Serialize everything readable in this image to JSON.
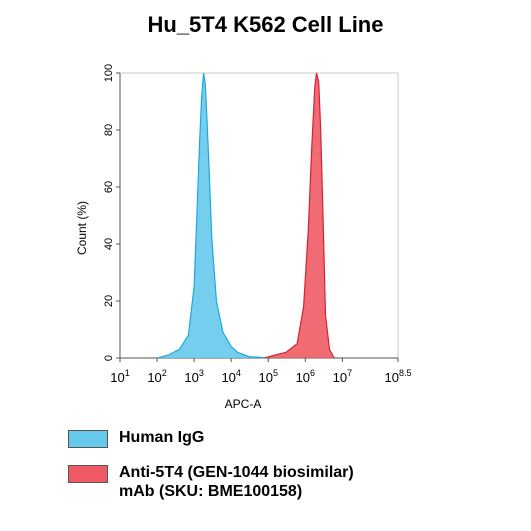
{
  "chart_data": {
    "type": "area",
    "title": "Hu_5T4 K562 Cell Line",
    "xlabel": "APC-A",
    "ylabel": "Count (%)",
    "xscale": "log",
    "xlim": [
      10,
      316228000
    ],
    "ylim": [
      0,
      100
    ],
    "xticks": [
      {
        "base": "10",
        "exp": "1",
        "value": 10
      },
      {
        "base": "10",
        "exp": "2",
        "value": 100
      },
      {
        "base": "10",
        "exp": "3",
        "value": 1000
      },
      {
        "base": "10",
        "exp": "4",
        "value": 10000
      },
      {
        "base": "10",
        "exp": "5",
        "value": 100000
      },
      {
        "base": "10",
        "exp": "6",
        "value": 1000000
      },
      {
        "base": "10",
        "exp": "7",
        "value": 10000000
      },
      {
        "base": "10",
        "exp": "8.5",
        "value": 316228000
      }
    ],
    "yticks": [
      "0",
      "20",
      "40",
      "60",
      "80",
      "100"
    ],
    "grid": false,
    "legend_position": "bottom",
    "series": [
      {
        "name": "Human IgG",
        "fill": "#67c9ec",
        "stroke": "#1ea9dc",
        "x": [
          100,
          200,
          400,
          700,
          1000,
          1200,
          1400,
          1600,
          1800,
          2000,
          2200,
          2500,
          3000,
          4000,
          6000,
          10000,
          15000,
          30000,
          100000
        ],
        "y": [
          0,
          1,
          3,
          8,
          25,
          52,
          75,
          92,
          100,
          96,
          85,
          68,
          42,
          20,
          9,
          4,
          2,
          0.5,
          0
        ]
      },
      {
        "name": "Anti-5T4 (GEN-1044 biosimilar) mAb (SKU: BME100158)",
        "fill": "#ee5b65",
        "stroke": "#d42230",
        "x": [
          80000,
          150000,
          300000,
          600000,
          900000,
          1200000,
          1500000,
          1800000,
          2000000,
          2300000,
          2600000,
          3000000,
          3500000,
          4500000,
          6000000
        ],
        "y": [
          0,
          1,
          2,
          5,
          18,
          45,
          75,
          95,
          100,
          97,
          80,
          50,
          15,
          3,
          0
        ]
      }
    ]
  },
  "legend": {
    "items": [
      {
        "lines": [
          "Human IgG"
        ],
        "color": "#67c9ec"
      },
      {
        "lines": [
          "Anti-5T4 (GEN-1044 biosimilar)",
          "mAb (SKU: BME100158)"
        ],
        "color": "#ee5b65"
      }
    ]
  }
}
